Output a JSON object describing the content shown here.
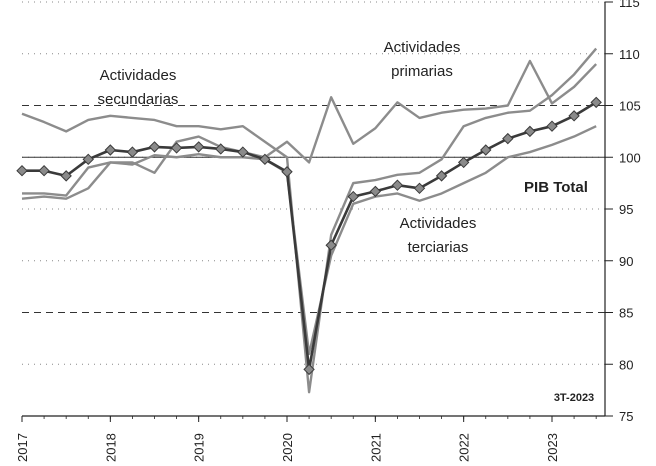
{
  "chart_data": {
    "type": "line",
    "x": [
      2017,
      2017.25,
      2017.5,
      2017.75,
      2018,
      2018.25,
      2018.5,
      2018.75,
      2019,
      2019.25,
      2019.5,
      2019.75,
      2020,
      2020.25,
      2020.5,
      2020.75,
      2021,
      2021.25,
      2021.5,
      2021.75,
      2022,
      2022.25,
      2022.5,
      2022.75,
      2023,
      2023.25,
      2023.5
    ],
    "xlim": [
      2017,
      2023.6
    ],
    "xticks": [
      2017,
      2018,
      2019,
      2020,
      2021,
      2022,
      2023
    ],
    "ylim": [
      75,
      115
    ],
    "yticks": [
      75,
      80,
      85,
      90,
      95,
      100,
      105,
      110,
      115
    ],
    "grid": true,
    "hlines": [
      {
        "value": 100,
        "style": "solid"
      },
      {
        "value": 85,
        "style": "dashed"
      },
      {
        "value": 105,
        "style": "dashed"
      }
    ],
    "annotation": "3T-2023",
    "series": [
      {
        "name": "Actividades secundarias",
        "color": "#8c8c8c",
        "values": [
          104.2,
          103.4,
          102.5,
          103.6,
          104.0,
          103.8,
          103.6,
          103.0,
          103.0,
          102.7,
          103.0,
          101.5,
          100.0,
          77.3,
          92.5,
          97.5,
          97.8,
          98.3,
          98.5,
          99.8,
          103.0,
          103.8,
          104.3,
          104.5,
          106.0,
          108.0,
          110.5
        ]
      },
      {
        "name": "Actividades primarias",
        "color": "#8c8c8c",
        "values": [
          96.5,
          96.5,
          96.3,
          99.0,
          99.5,
          99.5,
          98.5,
          101.5,
          102.0,
          101.0,
          100.5,
          100.0,
          101.5,
          99.5,
          105.8,
          101.3,
          102.8,
          105.3,
          103.8,
          104.3,
          104.6,
          104.7,
          105.0,
          109.3,
          105.2,
          106.8,
          109.0
        ]
      },
      {
        "name": "Actividades terciarias",
        "color": "#8c8c8c",
        "values": [
          96.0,
          96.2,
          96.0,
          97.0,
          99.5,
          99.3,
          100.2,
          100.0,
          100.3,
          100.0,
          100.0,
          99.8,
          98.5,
          81.0,
          90.5,
          95.5,
          96.2,
          96.5,
          95.8,
          96.5,
          97.5,
          98.5,
          100.0,
          100.5,
          101.2,
          102.0,
          103.0
        ]
      },
      {
        "name": "PIB Total",
        "color": "#3a3a3a",
        "marker": "diamond",
        "values": [
          98.7,
          98.7,
          98.2,
          99.8,
          100.7,
          100.5,
          101.0,
          100.9,
          101.0,
          100.8,
          100.5,
          99.8,
          98.6,
          79.5,
          91.5,
          96.2,
          96.7,
          97.3,
          97.0,
          98.2,
          99.5,
          100.7,
          101.8,
          102.5,
          103.0,
          104.0,
          105.3
        ]
      }
    ]
  }
}
